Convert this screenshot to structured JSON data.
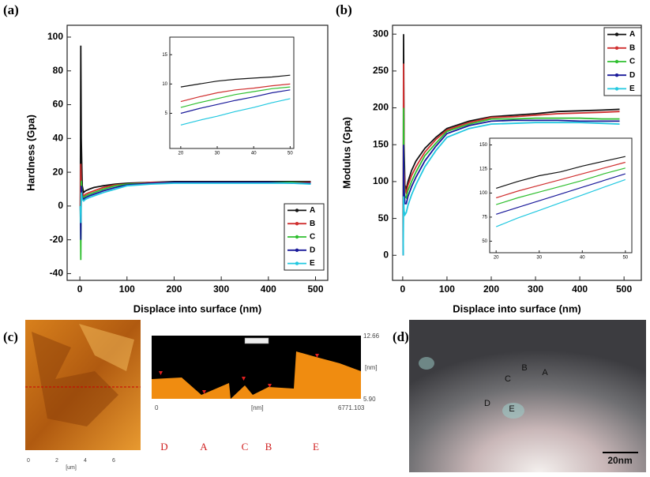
{
  "panel_labels": [
    "(a)",
    "(b)",
    "(c)",
    "(d)"
  ],
  "chart_data": [
    {
      "type": "line",
      "ylabel": "Hardness (Gpa)",
      "xlabel": "Displace into surface (nm)",
      "xlim": [
        -27,
        526
      ],
      "ylim": [
        -44,
        107
      ],
      "xticks": [
        0,
        100,
        200,
        300,
        400,
        500
      ],
      "yticks": [
        -40,
        -20,
        0,
        20,
        40,
        60,
        80,
        100
      ],
      "x": [
        1,
        2,
        3,
        5,
        8,
        12,
        20,
        30,
        50,
        75,
        100,
        150,
        200,
        250,
        300,
        350,
        400,
        450,
        490
      ],
      "series": [
        {
          "name": "A",
          "color": "#111111",
          "values": [
            0,
            95,
            40,
            12,
            8,
            9,
            10,
            11,
            12,
            13,
            13.5,
            14,
            14.5,
            14.5,
            14.5,
            14.5,
            14.5,
            14.5,
            14.5
          ]
        },
        {
          "name": "B",
          "color": "#d03030",
          "values": [
            0,
            25,
            10,
            8,
            6,
            7,
            8,
            9,
            11,
            12.5,
            13,
            14,
            14,
            14,
            14,
            14,
            14,
            14,
            14
          ]
        },
        {
          "name": "C",
          "color": "#2fbf2f",
          "values": [
            0,
            -32,
            15,
            6,
            5,
            6,
            7,
            8,
            10,
            12,
            13,
            13.5,
            14,
            14,
            14,
            14,
            14,
            14,
            13.5
          ]
        },
        {
          "name": "D",
          "color": "#1a1a9a",
          "values": [
            0,
            -20,
            12,
            5,
            4,
            5,
            6,
            7,
            9,
            11,
            12.5,
            13.5,
            14,
            14,
            14,
            14,
            14,
            13.5,
            13.5
          ]
        },
        {
          "name": "E",
          "color": "#22c8e0",
          "values": [
            0,
            -10,
            8,
            4,
            3,
            4,
            5,
            6,
            8,
            10,
            12,
            13,
            13.5,
            13.5,
            13.5,
            13.5,
            13.5,
            13.5,
            13
          ]
        }
      ]
    },
    {
      "type": "line",
      "xlim": [
        17,
        51
      ],
      "ylim": [
        -1,
        18
      ],
      "xticks": [
        20,
        30,
        40,
        50
      ],
      "yticks": [
        5,
        10,
        15
      ],
      "x": [
        20,
        25,
        30,
        35,
        40,
        45,
        50
      ],
      "series": [
        {
          "color": "#111111",
          "values": [
            9.5,
            10,
            10.5,
            10.8,
            11,
            11.2,
            11.5
          ]
        },
        {
          "color": "#d03030",
          "values": [
            7,
            7.8,
            8.5,
            9,
            9.3,
            9.7,
            10
          ]
        },
        {
          "color": "#2fbf2f",
          "values": [
            6,
            6.8,
            7.5,
            8.2,
            8.7,
            9.2,
            9.5
          ]
        },
        {
          "color": "#1a1a9a",
          "values": [
            5,
            5.8,
            6.5,
            7.2,
            7.8,
            8.5,
            9
          ]
        },
        {
          "color": "#22c8e0",
          "values": [
            3,
            3.8,
            4.5,
            5.3,
            6,
            6.8,
            7.5
          ]
        }
      ]
    },
    {
      "type": "line",
      "ylabel": "Modulus (Gpa)",
      "xlabel": "Displace into surface (nm)",
      "xlim": [
        -23,
        539
      ],
      "ylim": [
        -34,
        312
      ],
      "xticks": [
        0,
        100,
        200,
        300,
        400,
        500
      ],
      "yticks": [
        0,
        50,
        100,
        150,
        200,
        250,
        300
      ],
      "x": [
        1,
        2,
        3,
        5,
        8,
        12,
        20,
        30,
        50,
        75,
        100,
        150,
        200,
        250,
        300,
        350,
        400,
        450,
        490
      ],
      "series": [
        {
          "name": "A",
          "color": "#111111",
          "values": [
            0,
            300,
            150,
            95,
            90,
            100,
            115,
            128,
            145,
            160,
            172,
            182,
            188,
            190,
            192,
            195,
            196,
            197,
            198
          ]
        },
        {
          "name": "B",
          "color": "#d03030",
          "values": [
            0,
            260,
            120,
            90,
            85,
            95,
            108,
            120,
            140,
            157,
            170,
            180,
            187,
            188,
            190,
            192,
            193,
            194,
            195
          ]
        },
        {
          "name": "C",
          "color": "#2fbf2f",
          "values": [
            0,
            200,
            100,
            80,
            78,
            88,
            100,
            113,
            135,
            152,
            168,
            178,
            185,
            185,
            186,
            186,
            186,
            185,
            185
          ]
        },
        {
          "name": "D",
          "color": "#1a1a9a",
          "values": [
            0,
            150,
            90,
            70,
            70,
            80,
            93,
            106,
            128,
            148,
            165,
            176,
            182,
            183,
            183,
            183,
            182,
            182,
            182
          ]
        },
        {
          "name": "E",
          "color": "#22c8e0",
          "values": [
            0,
            80,
            60,
            55,
            58,
            68,
            82,
            96,
            120,
            142,
            160,
            172,
            178,
            179,
            180,
            180,
            180,
            179,
            178
          ]
        }
      ]
    },
    {
      "type": "line",
      "xlim": [
        18.5,
        51.5
      ],
      "ylim": [
        38,
        157
      ],
      "xticks": [
        20,
        30,
        40,
        50
      ],
      "yticks": [
        50,
        75,
        100,
        125,
        150
      ],
      "x": [
        20,
        25,
        30,
        35,
        40,
        45,
        50
      ],
      "series": [
        {
          "color": "#111111",
          "values": [
            105,
            112,
            118,
            122,
            128,
            133,
            138
          ]
        },
        {
          "color": "#d03030",
          "values": [
            95,
            102,
            108,
            114,
            120,
            126,
            132
          ]
        },
        {
          "color": "#2fbf2f",
          "values": [
            88,
            95,
            101,
            107,
            113,
            120,
            126
          ]
        },
        {
          "color": "#1a1a9a",
          "values": [
            78,
            85,
            92,
            99,
            106,
            113,
            120
          ]
        },
        {
          "color": "#22c8e0",
          "values": [
            65,
            74,
            82,
            90,
            98,
            106,
            114
          ]
        }
      ]
    }
  ],
  "afm": {
    "image_ticks": [
      "0",
      "2",
      "4",
      "6"
    ],
    "image_unit": "[um]",
    "profile_top": "12.66",
    "profile_unit": "[nm]",
    "profile_bottom": "5.90",
    "profile_start": "0",
    "profile_x_unit": "[nm]",
    "profile_end": "6771.103",
    "points": [
      "D",
      "A",
      "C",
      "B",
      "E"
    ]
  },
  "micrograph": {
    "labels": [
      "B",
      "A",
      "C",
      "D",
      "E"
    ],
    "scale": "20nm"
  }
}
